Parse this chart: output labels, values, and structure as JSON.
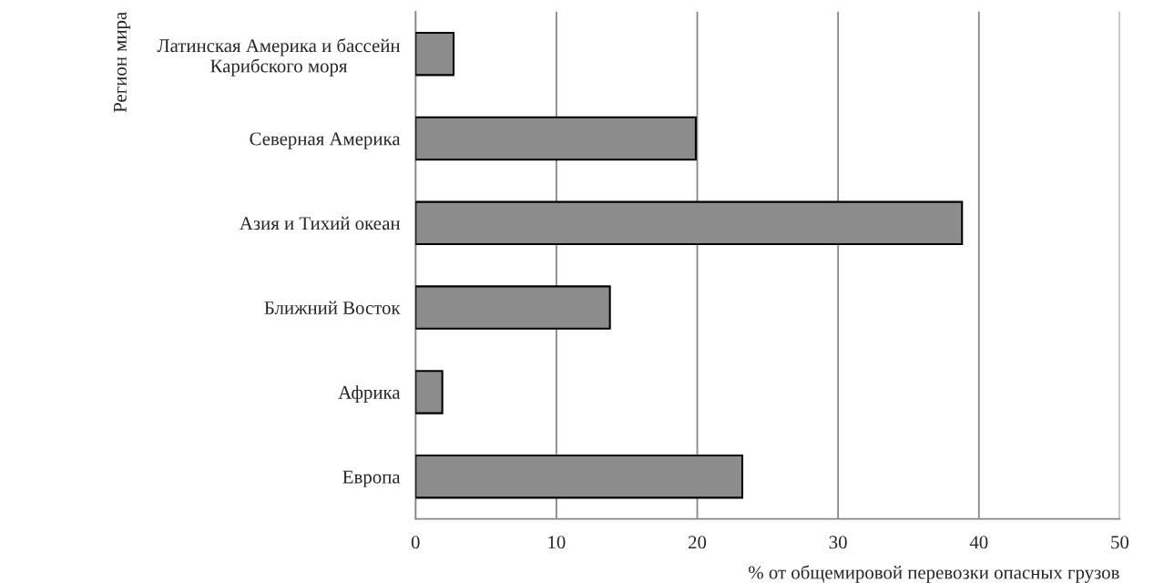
{
  "chart_data": {
    "type": "bar",
    "orientation": "horizontal",
    "categories": [
      "Латинская Америка и бассейн\nКарибского моря",
      "Северная Америка",
      "Азия и Тихий океан",
      "Ближний Восток",
      "Африка",
      "Европа"
    ],
    "values": [
      2.7,
      19.9,
      38.8,
      13.8,
      1.9,
      23.2
    ],
    "color": "#8c8c8c",
    "xlim": [
      0,
      50
    ],
    "xticks": [
      0,
      10,
      20,
      30,
      40,
      50
    ],
    "xlabel": "% от общемировой перевозки опасных грузов",
    "ylabel": "Регион мира",
    "grid": "x",
    "legend": false
  }
}
